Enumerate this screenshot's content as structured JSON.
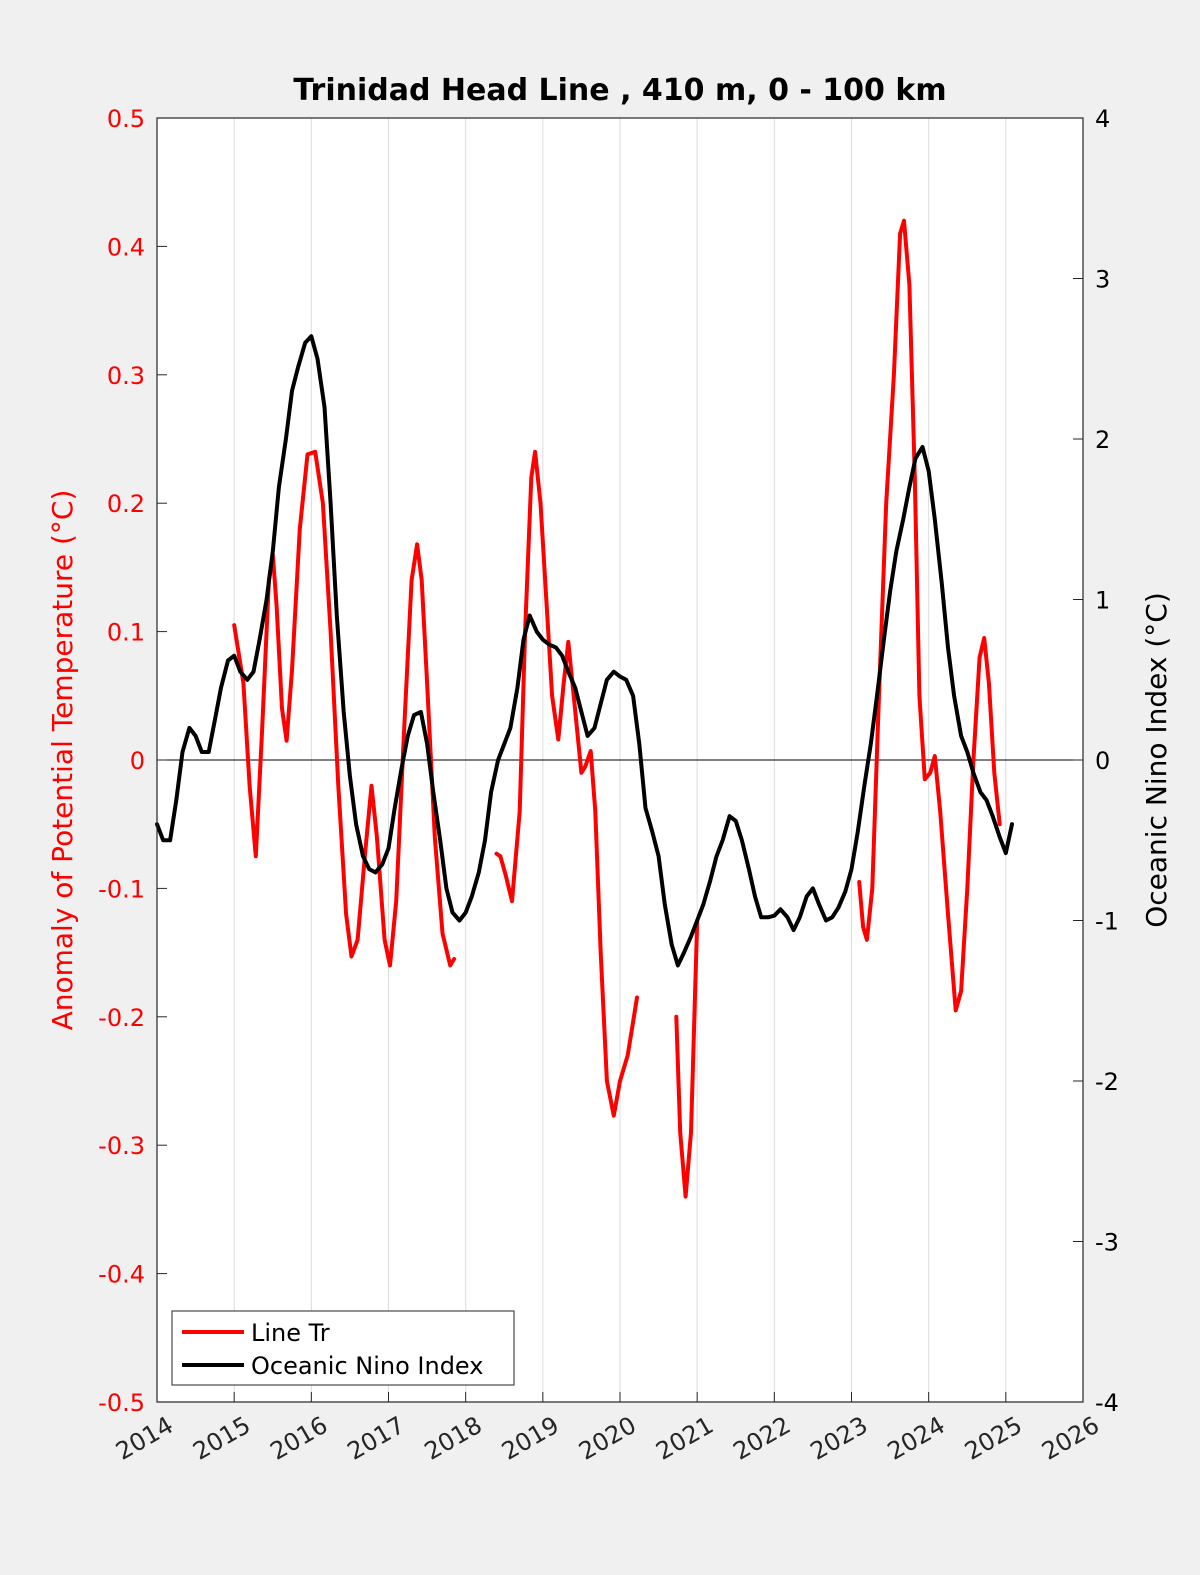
{
  "chart_data": {
    "type": "line",
    "title": "Trinidad Head Line , 410 m, 0 - 100 km",
    "ylabel": "Anomaly of Potential Temperature (°C)",
    "ylabel_right": "Oceanic Nino Index (°C)",
    "xlim": [
      2014,
      2026
    ],
    "ylim": [
      -0.5,
      0.5
    ],
    "ylim_right": [
      -4,
      4
    ],
    "x_ticks": [
      2014,
      2015,
      2016,
      2017,
      2018,
      2019,
      2020,
      2021,
      2022,
      2023,
      2024,
      2025,
      2026
    ],
    "y_ticks_left": [
      "0.5",
      "0.4",
      "0.3",
      "0.2",
      "0.1",
      "0",
      "-0.1",
      "-0.2",
      "-0.3",
      "-0.4",
      "-0.5"
    ],
    "y_ticks_right": [
      "4",
      "3",
      "2",
      "1",
      "0",
      "-1",
      "-2",
      "-3",
      "-4"
    ],
    "grid": "vertical",
    "zero_line": true,
    "legend": {
      "position": "bottom-left",
      "entries": [
        "Line Tr",
        "Oceanic Nino Index"
      ]
    },
    "colors": {
      "line_tr": "#ff0000",
      "oni": "#000000",
      "left_axis": "#ff0000"
    },
    "series": [
      {
        "name": "Line Tr",
        "axis": "left",
        "segments": [
          [
            [
              2015.0,
              0.105
            ],
            [
              2015.12,
              0.06
            ],
            [
              2015.2,
              -0.02
            ],
            [
              2015.28,
              -0.075
            ],
            [
              2015.36,
              0.02
            ],
            [
              2015.45,
              0.14
            ],
            [
              2015.5,
              0.16
            ],
            [
              2015.55,
              0.12
            ],
            [
              2015.62,
              0.04
            ],
            [
              2015.68,
              0.015
            ],
            [
              2015.75,
              0.07
            ],
            [
              2015.85,
              0.18
            ],
            [
              2015.95,
              0.238
            ],
            [
              2016.05,
              0.24
            ],
            [
              2016.15,
              0.2
            ],
            [
              2016.25,
              0.1
            ],
            [
              2016.35,
              -0.02
            ],
            [
              2016.45,
              -0.12
            ],
            [
              2016.52,
              -0.153
            ],
            [
              2016.6,
              -0.14
            ],
            [
              2016.7,
              -0.07
            ],
            [
              2016.78,
              -0.02
            ],
            [
              2016.85,
              -0.06
            ],
            [
              2016.95,
              -0.14
            ],
            [
              2017.02,
              -0.16
            ],
            [
              2017.1,
              -0.11
            ],
            [
              2017.2,
              0.02
            ],
            [
              2017.3,
              0.14
            ],
            [
              2017.37,
              0.168
            ],
            [
              2017.43,
              0.14
            ],
            [
              2017.5,
              0.06
            ],
            [
              2017.6,
              -0.06
            ],
            [
              2017.7,
              -0.135
            ],
            [
              2017.8,
              -0.16
            ],
            [
              2017.85,
              -0.155
            ]
          ],
          [
            [
              2018.4,
              -0.073
            ],
            [
              2018.45,
              -0.075
            ],
            [
              2018.52,
              -0.09
            ],
            [
              2018.6,
              -0.11
            ],
            [
              2018.7,
              -0.04
            ],
            [
              2018.77,
              0.1
            ],
            [
              2018.85,
              0.22
            ],
            [
              2018.9,
              0.24
            ],
            [
              2018.97,
              0.2
            ],
            [
              2019.05,
              0.12
            ],
            [
              2019.12,
              0.05
            ],
            [
              2019.2,
              0.016
            ],
            [
              2019.27,
              0.06
            ],
            [
              2019.33,
              0.092
            ],
            [
              2019.4,
              0.05
            ],
            [
              2019.5,
              -0.01
            ],
            [
              2019.55,
              -0.005
            ],
            [
              2019.62,
              0.007
            ],
            [
              2019.68,
              -0.04
            ],
            [
              2019.75,
              -0.15
            ],
            [
              2019.83,
              -0.25
            ],
            [
              2019.92,
              -0.277
            ],
            [
              2020.0,
              -0.25
            ],
            [
              2020.1,
              -0.23
            ],
            [
              2020.18,
              -0.2
            ],
            [
              2020.22,
              -0.185
            ]
          ],
          [
            [
              2020.73,
              -0.2
            ],
            [
              2020.78,
              -0.29
            ],
            [
              2020.85,
              -0.34
            ],
            [
              2020.92,
              -0.29
            ],
            [
              2021.0,
              -0.125
            ]
          ],
          [
            [
              2023.1,
              -0.095
            ],
            [
              2023.15,
              -0.13
            ],
            [
              2023.2,
              -0.14
            ],
            [
              2023.27,
              -0.1
            ],
            [
              2023.35,
              0.04
            ],
            [
              2023.45,
              0.2
            ],
            [
              2023.55,
              0.3
            ],
            [
              2023.63,
              0.41
            ],
            [
              2023.68,
              0.42
            ],
            [
              2023.75,
              0.37
            ],
            [
              2023.82,
              0.22
            ],
            [
              2023.88,
              0.05
            ],
            [
              2023.95,
              -0.015
            ],
            [
              2024.02,
              -0.01
            ],
            [
              2024.08,
              0.003
            ],
            [
              2024.15,
              -0.04
            ],
            [
              2024.25,
              -0.12
            ],
            [
              2024.35,
              -0.195
            ],
            [
              2024.42,
              -0.18
            ],
            [
              2024.5,
              -0.1
            ],
            [
              2024.58,
              0.0
            ],
            [
              2024.66,
              0.08
            ],
            [
              2024.72,
              0.095
            ],
            [
              2024.78,
              0.06
            ],
            [
              2024.85,
              -0.01
            ],
            [
              2024.92,
              -0.05
            ]
          ]
        ]
      },
      {
        "name": "Oceanic Nino Index",
        "axis": "right",
        "segments": [
          [
            [
              2014.0,
              -0.4
            ],
            [
              2014.08,
              -0.5
            ],
            [
              2014.17,
              -0.5
            ],
            [
              2014.25,
              -0.25
            ],
            [
              2014.33,
              0.05
            ],
            [
              2014.42,
              0.2
            ],
            [
              2014.5,
              0.15
            ],
            [
              2014.58,
              0.05
            ],
            [
              2014.67,
              0.05
            ],
            [
              2014.75,
              0.25
            ],
            [
              2014.83,
              0.45
            ],
            [
              2014.92,
              0.62
            ],
            [
              2015.0,
              0.65
            ],
            [
              2015.08,
              0.55
            ],
            [
              2015.17,
              0.5
            ],
            [
              2015.25,
              0.55
            ],
            [
              2015.33,
              0.75
            ],
            [
              2015.42,
              1.0
            ],
            [
              2015.5,
              1.3
            ],
            [
              2015.58,
              1.7
            ],
            [
              2015.67,
              2.0
            ],
            [
              2015.75,
              2.3
            ],
            [
              2015.83,
              2.45
            ],
            [
              2015.92,
              2.6
            ],
            [
              2016.0,
              2.64
            ],
            [
              2016.08,
              2.5
            ],
            [
              2016.17,
              2.2
            ],
            [
              2016.25,
              1.6
            ],
            [
              2016.33,
              0.9
            ],
            [
              2016.42,
              0.3
            ],
            [
              2016.5,
              -0.1
            ],
            [
              2016.58,
              -0.4
            ],
            [
              2016.67,
              -0.6
            ],
            [
              2016.75,
              -0.68
            ],
            [
              2016.83,
              -0.7
            ],
            [
              2016.92,
              -0.65
            ],
            [
              2017.0,
              -0.55
            ],
            [
              2017.08,
              -0.3
            ],
            [
              2017.17,
              -0.05
            ],
            [
              2017.25,
              0.15
            ],
            [
              2017.33,
              0.28
            ],
            [
              2017.42,
              0.3
            ],
            [
              2017.5,
              0.1
            ],
            [
              2017.58,
              -0.2
            ],
            [
              2017.67,
              -0.5
            ],
            [
              2017.75,
              -0.8
            ],
            [
              2017.83,
              -0.95
            ],
            [
              2017.92,
              -1.0
            ],
            [
              2018.0,
              -0.95
            ],
            [
              2018.08,
              -0.85
            ],
            [
              2018.17,
              -0.7
            ],
            [
              2018.25,
              -0.5
            ],
            [
              2018.33,
              -0.2
            ],
            [
              2018.42,
              0.0
            ],
            [
              2018.5,
              0.1
            ],
            [
              2018.58,
              0.2
            ],
            [
              2018.67,
              0.45
            ],
            [
              2018.75,
              0.75
            ],
            [
              2018.83,
              0.9
            ],
            [
              2018.92,
              0.8
            ],
            [
              2019.0,
              0.75
            ],
            [
              2019.08,
              0.72
            ],
            [
              2019.17,
              0.7
            ],
            [
              2019.25,
              0.65
            ],
            [
              2019.33,
              0.55
            ],
            [
              2019.42,
              0.45
            ],
            [
              2019.5,
              0.3
            ],
            [
              2019.58,
              0.15
            ],
            [
              2019.67,
              0.2
            ],
            [
              2019.75,
              0.35
            ],
            [
              2019.83,
              0.5
            ],
            [
              2019.92,
              0.55
            ],
            [
              2020.0,
              0.52
            ],
            [
              2020.08,
              0.5
            ],
            [
              2020.17,
              0.4
            ],
            [
              2020.25,
              0.1
            ],
            [
              2020.33,
              -0.3
            ],
            [
              2020.42,
              -0.45
            ],
            [
              2020.5,
              -0.6
            ],
            [
              2020.58,
              -0.9
            ],
            [
              2020.67,
              -1.15
            ],
            [
              2020.75,
              -1.28
            ],
            [
              2020.83,
              -1.2
            ],
            [
              2020.92,
              -1.1
            ],
            [
              2021.0,
              -1.0
            ],
            [
              2021.08,
              -0.9
            ],
            [
              2021.17,
              -0.75
            ],
            [
              2021.25,
              -0.6
            ],
            [
              2021.33,
              -0.5
            ],
            [
              2021.42,
              -0.35
            ],
            [
              2021.5,
              -0.38
            ],
            [
              2021.58,
              -0.5
            ],
            [
              2021.67,
              -0.68
            ],
            [
              2021.75,
              -0.85
            ],
            [
              2021.83,
              -0.98
            ],
            [
              2021.92,
              -0.98
            ],
            [
              2022.0,
              -0.97
            ],
            [
              2022.08,
              -0.93
            ],
            [
              2022.17,
              -0.98
            ],
            [
              2022.25,
              -1.06
            ],
            [
              2022.33,
              -0.98
            ],
            [
              2022.42,
              -0.85
            ],
            [
              2022.5,
              -0.8
            ],
            [
              2022.58,
              -0.9
            ],
            [
              2022.67,
              -1.0
            ],
            [
              2022.75,
              -0.98
            ],
            [
              2022.83,
              -0.92
            ],
            [
              2022.92,
              -0.82
            ],
            [
              2023.0,
              -0.68
            ],
            [
              2023.08,
              -0.45
            ],
            [
              2023.17,
              -0.15
            ],
            [
              2023.25,
              0.1
            ],
            [
              2023.33,
              0.4
            ],
            [
              2023.42,
              0.75
            ],
            [
              2023.5,
              1.05
            ],
            [
              2023.58,
              1.3
            ],
            [
              2023.67,
              1.5
            ],
            [
              2023.75,
              1.7
            ],
            [
              2023.83,
              1.88
            ],
            [
              2023.92,
              1.95
            ],
            [
              2024.0,
              1.8
            ],
            [
              2024.08,
              1.5
            ],
            [
              2024.17,
              1.1
            ],
            [
              2024.25,
              0.7
            ],
            [
              2024.33,
              0.4
            ],
            [
              2024.42,
              0.15
            ],
            [
              2024.5,
              0.05
            ],
            [
              2024.58,
              -0.08
            ],
            [
              2024.67,
              -0.2
            ],
            [
              2024.75,
              -0.25
            ],
            [
              2024.83,
              -0.35
            ],
            [
              2024.92,
              -0.48
            ],
            [
              2025.0,
              -0.58
            ],
            [
              2025.08,
              -0.4
            ]
          ]
        ]
      }
    ]
  }
}
